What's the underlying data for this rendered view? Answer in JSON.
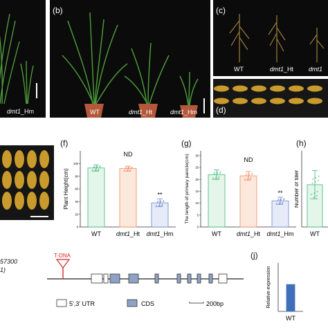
{
  "panels": {
    "a": {
      "label_hm": "_Hm",
      "label_hm_gene": "dmt1"
    },
    "b": {
      "label": "(b)",
      "wt": "WT",
      "ht_gene": "dmt1",
      "ht": "_Ht",
      "hm_gene": "dmt1",
      "hm": "_Hm"
    },
    "c": {
      "label": "(c)",
      "wt": "WT",
      "ht_gene": "dmt1",
      "ht": "_Ht",
      "hm_gene": "dmt1"
    },
    "d": {
      "label": "(d)"
    },
    "f": {
      "label": "(f)"
    },
    "g": {
      "label": "(g)"
    },
    "h": {
      "label": "(h)"
    },
    "j": {
      "label": "(j)"
    }
  },
  "chart_data": [
    {
      "panel": "f",
      "type": "bar",
      "ylabel": "Plant Height(cm)",
      "yticks": [
        0,
        20,
        40,
        60,
        80,
        100
      ],
      "ylim": [
        0,
        120
      ],
      "categories": [
        {
          "gene": "WT",
          "suffix": ""
        },
        {
          "gene": "dmt1",
          "suffix": "_Ht"
        },
        {
          "gene": "dmt1",
          "suffix": "_Hm"
        }
      ],
      "values": [
        93,
        92,
        38
      ],
      "errors": [
        5,
        4,
        6
      ],
      "annotations": [
        "",
        "ND",
        "**"
      ],
      "colors": [
        "#3cb878",
        "#f08a5d",
        "#6a86c8"
      ],
      "fills": [
        "#e4f5ea",
        "#fde8de",
        "#e6ebf7"
      ]
    },
    {
      "panel": "g",
      "type": "bar",
      "ylabel": "The length of primary panicle(cm)",
      "yticks": [
        0,
        5,
        10,
        15,
        20,
        25,
        30
      ],
      "ylim": [
        0,
        32
      ],
      "categories": [
        {
          "gene": "WT",
          "suffix": ""
        },
        {
          "gene": "dmt1",
          "suffix": "_Ht"
        },
        {
          "gene": "dmt1",
          "suffix": "_Hm"
        }
      ],
      "values": [
        22,
        21.5,
        11
      ],
      "errors": [
        2,
        1.8,
        1.5
      ],
      "annotations": [
        "",
        "ND",
        "**"
      ],
      "colors": [
        "#3cb878",
        "#f08a5d",
        "#6a86c8"
      ],
      "fills": [
        "#e4f5ea",
        "#fde8de",
        "#e6ebf7"
      ]
    },
    {
      "panel": "h",
      "type": "bar",
      "ylabel": "Number of tiller",
      "categories": [
        {
          "gene": "WT",
          "suffix": ""
        }
      ],
      "values": [
        6
      ],
      "errors": [
        2
      ],
      "colors": [
        "#3cb878"
      ],
      "fills": [
        "#e4f5ea"
      ]
    },
    {
      "panel": "j",
      "type": "bar",
      "ylabel": "Relative expression",
      "categories": [
        {
          "gene": "WT",
          "suffix": ""
        }
      ],
      "values": [
        0.6
      ],
      "colors": [
        "#3f6fb8"
      ]
    }
  ],
  "gene": {
    "label_line1": "57300",
    "label_line2": "1)",
    "tdna": "T-DNA",
    "legend_utr": "5',3' UTR",
    "legend_cds": "CDS",
    "scale": "200bp"
  }
}
